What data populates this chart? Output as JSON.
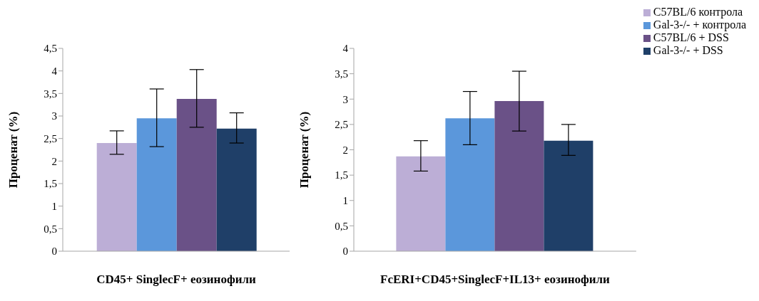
{
  "chart_data": [
    {
      "type": "bar",
      "xlabel": "CD45+ SinglecF+ еозинофили",
      "ylabel": "Проценат (%)",
      "categories": [
        null
      ],
      "series": [
        {
          "color": "#bcaed6",
          "values": [
            2.4
          ],
          "errors": [
            [
              2.15,
              2.67
            ]
          ]
        },
        {
          "color": "#5b97db",
          "values": [
            2.95
          ],
          "errors": [
            [
              2.32,
              3.6
            ]
          ]
        },
        {
          "color": "#6a5187",
          "values": [
            3.38
          ],
          "errors": [
            [
              2.75,
              4.03
            ]
          ]
        },
        {
          "color": "#1f3f68",
          "values": [
            2.72
          ],
          "errors": [
            [
              2.4,
              3.07
            ]
          ]
        }
      ],
      "ylim": [
        0,
        4.5
      ],
      "yticks": [
        0,
        {
          "value": 0.5,
          "label": "0,5"
        },
        1,
        {
          "value": 1.5,
          "label": "1,5"
        },
        2,
        {
          "value": 2.5,
          "label": "2,5"
        },
        3,
        {
          "value": 3.5,
          "label": "3,5"
        },
        4,
        {
          "value": 4.5,
          "label": "4,5"
        }
      ],
      "grid": false,
      "legend": false
    },
    {
      "type": "bar",
      "xlabel": "FcERI+CD45+SinglecF+IL13+ еозинофили",
      "ylabel": "Проценат (%)",
      "categories": [
        null
      ],
      "series": [
        {
          "name": "C57BL/6 контрола",
          "color": "#bcaed6",
          "values": [
            1.87
          ],
          "errors": [
            [
              1.58,
              2.18
            ]
          ]
        },
        {
          "name": "Gal-3-/- + контрола",
          "color": "#5b97db",
          "values": [
            2.62
          ],
          "errors": [
            [
              2.1,
              3.15
            ]
          ]
        },
        {
          "name": "C57BL/6 + DSS",
          "color": "#6a5187",
          "values": [
            2.96
          ],
          "errors": [
            [
              2.37,
              3.55
            ]
          ]
        },
        {
          "name": "Gal-3-/- + DSS",
          "color": "#1f3f68",
          "values": [
            2.18
          ],
          "errors": [
            [
              1.89,
              2.5
            ]
          ]
        }
      ],
      "ylim": [
        0,
        4
      ],
      "yticks": [
        0,
        {
          "value": 0.5,
          "label": "0,5"
        },
        1,
        {
          "value": 1.5,
          "label": "1,5"
        },
        2,
        {
          "value": 2.5,
          "label": "2,5"
        },
        3,
        {
          "value": 3.5,
          "label": "3,5"
        },
        4
      ],
      "grid": false,
      "legend": "top right"
    }
  ]
}
